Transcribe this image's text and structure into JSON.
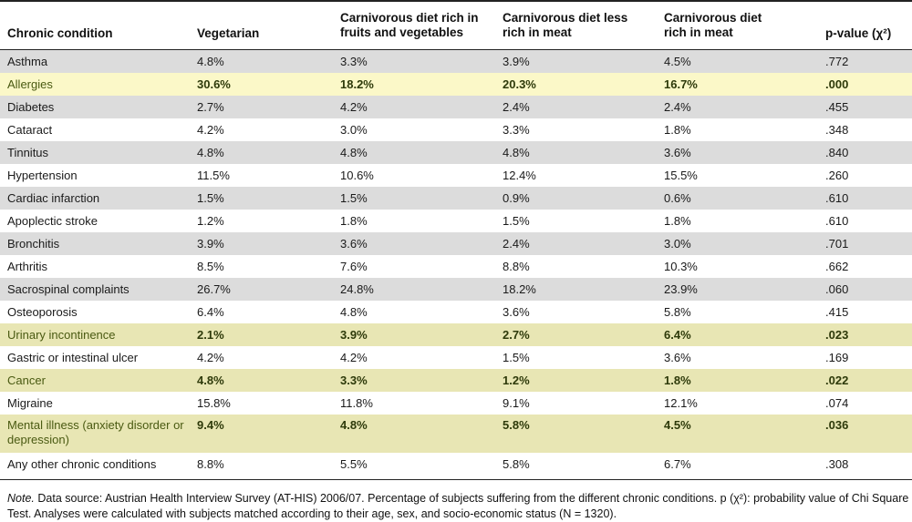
{
  "table": {
    "headers": {
      "condition": "Chronic condition",
      "vegetarian": "Vegetarian",
      "carn_fruits": "Carnivorous diet rich in fruits and vegetables",
      "carn_less": "Carnivorous diet less rich in meat",
      "carn_rich": "Carnivorous diet rich in meat",
      "pvalue": "p-value (χ²)"
    },
    "rows": [
      {
        "condition": "Asthma",
        "v": "4.8%",
        "cf": "3.3%",
        "cl": "3.9%",
        "cr": "4.5%",
        "p": ".772",
        "style": "gray"
      },
      {
        "condition": "Allergies",
        "v": "30.6%",
        "cf": "18.2%",
        "cl": "20.3%",
        "cr": "16.7%",
        "p": ".000",
        "style": "hl"
      },
      {
        "condition": "Diabetes",
        "v": "2.7%",
        "cf": "4.2%",
        "cl": "2.4%",
        "cr": "2.4%",
        "p": ".455",
        "style": "gray"
      },
      {
        "condition": "Cataract",
        "v": "4.2%",
        "cf": "3.0%",
        "cl": "3.3%",
        "cr": "1.8%",
        "p": ".348",
        "style": "white"
      },
      {
        "condition": "Tinnitus",
        "v": "4.8%",
        "cf": "4.8%",
        "cl": "4.8%",
        "cr": "3.6%",
        "p": ".840",
        "style": "gray"
      },
      {
        "condition": "Hypertension",
        "v": "11.5%",
        "cf": "10.6%",
        "cl": "12.4%",
        "cr": "15.5%",
        "p": ".260",
        "style": "white"
      },
      {
        "condition": "Cardiac infarction",
        "v": "1.5%",
        "cf": "1.5%",
        "cl": "0.9%",
        "cr": "0.6%",
        "p": ".610",
        "style": "gray"
      },
      {
        "condition": "Apoplectic stroke",
        "v": "1.2%",
        "cf": "1.8%",
        "cl": "1.5%",
        "cr": "1.8%",
        "p": ".610",
        "style": "white"
      },
      {
        "condition": "Bronchitis",
        "v": "3.9%",
        "cf": "3.6%",
        "cl": "2.4%",
        "cr": "3.0%",
        "p": ".701",
        "style": "gray"
      },
      {
        "condition": "Arthritis",
        "v": "8.5%",
        "cf": "7.6%",
        "cl": "8.8%",
        "cr": "10.3%",
        "p": ".662",
        "style": "white"
      },
      {
        "condition": "Sacrospinal complaints",
        "v": "26.7%",
        "cf": "24.8%",
        "cl": "18.2%",
        "cr": "23.9%",
        "p": ".060",
        "style": "gray"
      },
      {
        "condition": "Osteoporosis",
        "v": "6.4%",
        "cf": "4.8%",
        "cl": "3.6%",
        "cr": "5.8%",
        "p": ".415",
        "style": "white"
      },
      {
        "condition": "Urinary incontinence",
        "v": "2.1%",
        "cf": "3.9%",
        "cl": "2.7%",
        "cr": "6.4%",
        "p": ".023",
        "style": "hl2"
      },
      {
        "condition": "Gastric or intestinal ulcer",
        "v": "4.2%",
        "cf": "4.2%",
        "cl": "1.5%",
        "cr": "3.6%",
        "p": ".169",
        "style": "white"
      },
      {
        "condition": "Cancer",
        "v": "4.8%",
        "cf": "3.3%",
        "cl": "1.2%",
        "cr": "1.8%",
        "p": ".022",
        "style": "hl2"
      },
      {
        "condition": "Migraine",
        "v": "15.8%",
        "cf": "11.8%",
        "cl": "9.1%",
        "cr": "12.1%",
        "p": ".074",
        "style": "white"
      },
      {
        "condition": "Mental illness (anxiety disorder or depression)",
        "v": "9.4%",
        "cf": "4.8%",
        "cl": "5.8%",
        "cr": "4.5%",
        "p": ".036",
        "style": "hl2",
        "tall": true
      },
      {
        "condition": "Any other chronic conditions",
        "v": "8.8%",
        "cf": "5.5%",
        "cl": "5.8%",
        "cr": "6.7%",
        "p": ".308",
        "style": "white"
      }
    ]
  },
  "note": {
    "label": "Note.",
    "text": " Data source: Austrian Health Interview Survey (AT-HIS) 2006/07. Percentage of subjects suffering from the different chronic conditions. p (χ²): probability value of Chi Square Test. Analyses were calculated with subjects matched according to their age, sex, and socio-economic status (N = 1320)."
  }
}
